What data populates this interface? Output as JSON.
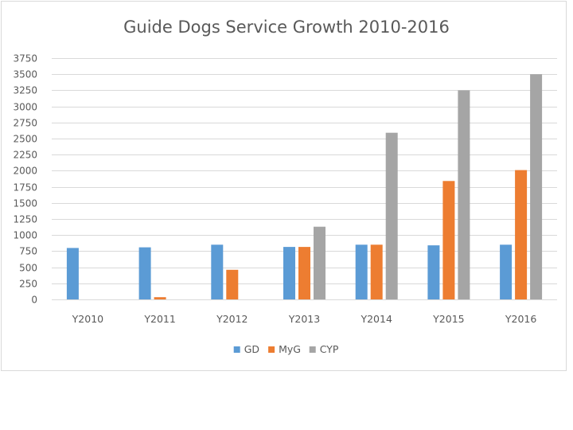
{
  "chart_data": {
    "type": "bar",
    "title": "Guide Dogs Service Growth 2010-2016",
    "xlabel": "",
    "ylabel": "",
    "ylim": [
      0,
      3750
    ],
    "yticks": [
      0,
      250,
      500,
      750,
      1000,
      1250,
      1500,
      1750,
      2000,
      2250,
      2500,
      2750,
      3000,
      3250,
      3500,
      3750
    ],
    "grid": true,
    "legend_position": "bottom",
    "categories": [
      "Y2010",
      "Y2011",
      "Y2012",
      "Y2013",
      "Y2014",
      "Y2015",
      "Y2016"
    ],
    "series": [
      {
        "name": "GD",
        "color": "#5b9bd5",
        "values": [
          800,
          810,
          850,
          815,
          850,
          840,
          850
        ]
      },
      {
        "name": "MyG",
        "color": "#ed7d31",
        "values": [
          0,
          35,
          460,
          815,
          850,
          1840,
          2010
        ]
      },
      {
        "name": "CYP",
        "color": "#a5a5a5",
        "values": [
          0,
          0,
          0,
          1130,
          2590,
          3250,
          3500
        ]
      }
    ]
  }
}
